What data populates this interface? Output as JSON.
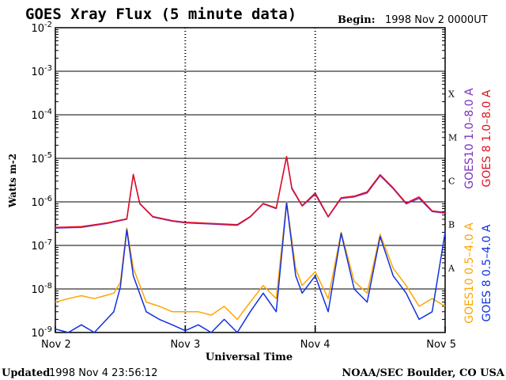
{
  "header": {
    "title": "GOES Xray Flux (5 minute data)",
    "begin_label": "Begin:",
    "begin_value": "1998 Nov 2 0000UT"
  },
  "footer": {
    "updated_label": "Updated",
    "updated_value": "1998 Nov  4 23:56:12",
    "credit": "NOAA/SEC Boulder, CO USA"
  },
  "colors": {
    "goes10_long": "#7b2fbf",
    "goes8_long": "#e01020",
    "goes10_short": "#ffa500",
    "goes8_short": "#1030e0",
    "axes": "#000000"
  },
  "chart_data": {
    "type": "line",
    "title": "GOES Xray Flux (5 minute data)",
    "xlabel": "Universal Time",
    "ylabel": "Watts m-2",
    "y_scale": "log",
    "ylim": [
      1e-09,
      0.01
    ],
    "xlim": [
      0,
      3
    ],
    "x_unit": "days since 1998 Nov 2 00:00 UT",
    "x_ticks": [
      {
        "value": 0,
        "label": "Nov 2"
      },
      {
        "value": 1,
        "label": "Nov 3"
      },
      {
        "value": 2,
        "label": "Nov 4"
      },
      {
        "value": 3,
        "label": "Nov 5"
      }
    ],
    "y_ticks": [
      {
        "exp": -9,
        "base": "10",
        "power": "-9"
      },
      {
        "exp": -8,
        "base": "10",
        "power": "-8"
      },
      {
        "exp": -7,
        "base": "10",
        "power": "-7"
      },
      {
        "exp": -6,
        "base": "10",
        "power": "-6"
      },
      {
        "exp": -5,
        "base": "10",
        "power": "-5"
      },
      {
        "exp": -4,
        "base": "10",
        "power": "-4"
      },
      {
        "exp": -3,
        "base": "10",
        "power": "-3"
      },
      {
        "exp": -2,
        "base": "10",
        "power": "-2"
      }
    ],
    "flare_classes": [
      {
        "label": "A",
        "exp": -8
      },
      {
        "label": "B",
        "exp": -7
      },
      {
        "label": "C",
        "exp": -6
      },
      {
        "label": "M",
        "exp": -5
      },
      {
        "label": "X",
        "exp": -4
      }
    ],
    "horizontal_grid": true,
    "legend_position": "right",
    "series": [
      {
        "name": "GOES10 1.0–8.0 A",
        "color": "#7b2fbf",
        "x": [
          0,
          0.2,
          0.4,
          0.55,
          0.6,
          0.65,
          0.75,
          0.9,
          1.0,
          1.2,
          1.4,
          1.5,
          1.6,
          1.7,
          1.78,
          1.82,
          1.9,
          2.0,
          2.1,
          2.2,
          2.3,
          2.4,
          2.5,
          2.6,
          2.7,
          2.8,
          2.9,
          3.0
        ],
        "y": [
          2.5e-07,
          2.6e-07,
          3.2e-07,
          4e-07,
          4.2e-06,
          9e-07,
          4.5e-07,
          3.6e-07,
          3.3e-07,
          3.1e-07,
          2.9e-07,
          4.5e-07,
          9e-07,
          7e-07,
          1.1e-05,
          2e-06,
          8e-07,
          1.5e-06,
          4.5e-07,
          1.2e-06,
          1.3e-06,
          1.6e-06,
          4e-06,
          2e-06,
          9e-07,
          1.2e-06,
          6e-07,
          5.5e-07
        ]
      },
      {
        "name": "GOES 8 1.0–8.0 A",
        "color": "#e01020",
        "x": [
          0,
          0.2,
          0.4,
          0.55,
          0.6,
          0.65,
          0.75,
          0.9,
          1.0,
          1.2,
          1.4,
          1.5,
          1.6,
          1.7,
          1.78,
          1.82,
          1.9,
          2.0,
          2.1,
          2.2,
          2.3,
          2.4,
          2.5,
          2.6,
          2.7,
          2.8,
          2.9,
          3.0
        ],
        "y": [
          2.6e-07,
          2.7e-07,
          3.3e-07,
          4.1e-07,
          4.3e-06,
          9.2e-07,
          4.6e-07,
          3.7e-07,
          3.4e-07,
          3.2e-07,
          3e-07,
          4.6e-07,
          9.2e-07,
          7.2e-07,
          1.1e-05,
          2.1e-06,
          8.2e-07,
          1.6e-06,
          4.6e-07,
          1.25e-06,
          1.35e-06,
          1.7e-06,
          4.2e-06,
          2.1e-06,
          9.4e-07,
          1.3e-06,
          6.2e-07,
          5.7e-07
        ]
      },
      {
        "name": "GOES10 0.5–4.0 A",
        "color": "#ffa500",
        "x": [
          0,
          0.1,
          0.2,
          0.3,
          0.45,
          0.5,
          0.55,
          0.6,
          0.7,
          0.8,
          0.9,
          1.0,
          1.1,
          1.2,
          1.3,
          1.4,
          1.5,
          1.6,
          1.7,
          1.78,
          1.85,
          1.9,
          2.0,
          2.1,
          2.2,
          2.3,
          2.4,
          2.5,
          2.6,
          2.7,
          2.8,
          2.9,
          3.0
        ],
        "y": [
          5e-09,
          6e-09,
          7e-09,
          6e-09,
          8e-09,
          1.4e-08,
          2.5e-07,
          3e-08,
          5e-09,
          4e-09,
          3e-09,
          3e-09,
          3e-09,
          2.5e-09,
          4e-09,
          2e-09,
          5e-09,
          1.2e-08,
          6e-09,
          1e-06,
          3e-08,
          1.2e-08,
          2.5e-08,
          6e-09,
          2e-07,
          1.5e-08,
          8e-09,
          1.8e-07,
          3e-08,
          1.2e-08,
          4e-09,
          6e-09,
          4e-09
        ]
      },
      {
        "name": "GOES 8 0.5–4.0 A",
        "color": "#1030e0",
        "x": [
          0,
          0.1,
          0.2,
          0.3,
          0.45,
          0.5,
          0.55,
          0.6,
          0.7,
          0.8,
          0.9,
          1.0,
          1.1,
          1.2,
          1.3,
          1.4,
          1.5,
          1.6,
          1.7,
          1.78,
          1.85,
          1.9,
          2.0,
          2.1,
          2.2,
          2.3,
          2.4,
          2.5,
          2.6,
          2.7,
          2.8,
          2.9,
          3.0
        ],
        "y": [
          1.2e-09,
          1e-09,
          1.5e-09,
          1e-09,
          3e-09,
          1.1e-08,
          2.3e-07,
          2e-08,
          3e-09,
          2e-09,
          1.5e-09,
          1.1e-09,
          1.5e-09,
          1e-09,
          2e-09,
          1e-09,
          3e-09,
          8e-09,
          3e-09,
          9.5e-07,
          2e-08,
          8e-09,
          2e-08,
          3e-09,
          1.9e-07,
          1e-08,
          5e-09,
          1.6e-07,
          2e-08,
          8e-09,
          2e-09,
          3e-09,
          2e-07
        ]
      }
    ]
  }
}
